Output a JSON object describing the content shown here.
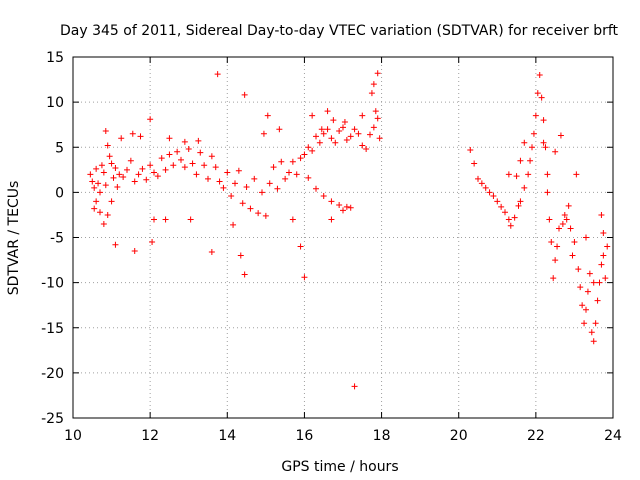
{
  "chart_data": {
    "type": "scatter",
    "title": "Day 345 of 2011, Sidereal Day-to-day VTEC variation (SDTVAR) for receiver brft",
    "xlabel": "GPS time / hours",
    "ylabel": "SDTVAR / TECUs",
    "xlim": [
      10,
      24
    ],
    "ylim": [
      -25,
      15
    ],
    "xticks": [
      10,
      12,
      14,
      16,
      18,
      20,
      22,
      24
    ],
    "yticks": [
      -25,
      -20,
      -15,
      -10,
      -5,
      0,
      5,
      10,
      15
    ],
    "grid": true,
    "marker": "+",
    "color": "#ff0000",
    "series": [
      {
        "name": "SDTVAR",
        "points": [
          [
            10.45,
            2.0
          ],
          [
            10.5,
            1.2
          ],
          [
            10.55,
            0.5
          ],
          [
            10.6,
            2.6
          ],
          [
            10.65,
            1.0
          ],
          [
            10.7,
            0.0
          ],
          [
            10.75,
            3.0
          ],
          [
            10.8,
            2.2
          ],
          [
            10.85,
            0.8
          ],
          [
            10.9,
            5.2
          ],
          [
            10.95,
            4.0
          ],
          [
            11.0,
            3.2
          ],
          [
            11.05,
            1.6
          ],
          [
            11.1,
            2.7
          ],
          [
            11.15,
            0.6
          ],
          [
            11.2,
            2.0
          ],
          [
            11.3,
            1.7
          ],
          [
            11.4,
            2.5
          ],
          [
            11.5,
            3.5
          ],
          [
            11.6,
            1.2
          ],
          [
            11.7,
            2.0
          ],
          [
            11.8,
            2.6
          ],
          [
            11.9,
            1.4
          ],
          [
            12.0,
            3.0
          ],
          [
            12.1,
            2.2
          ],
          [
            12.2,
            1.8
          ],
          [
            12.3,
            3.8
          ],
          [
            12.4,
            2.5
          ],
          [
            12.5,
            4.2
          ],
          [
            12.6,
            3.0
          ],
          [
            12.7,
            4.5
          ],
          [
            12.8,
            3.6
          ],
          [
            12.9,
            2.8
          ],
          [
            13.0,
            4.8
          ],
          [
            13.1,
            3.2
          ],
          [
            13.2,
            2.0
          ],
          [
            13.3,
            4.4
          ],
          [
            13.4,
            3.0
          ],
          [
            13.5,
            1.5
          ],
          [
            13.6,
            4.0
          ],
          [
            13.7,
            2.8
          ],
          [
            13.8,
            1.2
          ],
          [
            13.9,
            0.5
          ],
          [
            14.0,
            2.2
          ],
          [
            14.1,
            -0.4
          ],
          [
            14.2,
            1.0
          ],
          [
            14.3,
            2.4
          ],
          [
            14.4,
            -1.2
          ],
          [
            14.5,
            0.6
          ],
          [
            14.6,
            -1.8
          ],
          [
            14.7,
            1.5
          ],
          [
            14.8,
            -2.3
          ],
          [
            14.9,
            0.0
          ],
          [
            15.0,
            -2.6
          ],
          [
            15.1,
            1.0
          ],
          [
            15.2,
            2.8
          ],
          [
            15.3,
            0.4
          ],
          [
            15.4,
            3.4
          ],
          [
            15.5,
            1.5
          ],
          [
            15.6,
            2.2
          ],
          [
            15.7,
            3.4
          ],
          [
            15.8,
            2.0
          ],
          [
            15.9,
            3.8
          ],
          [
            16.0,
            4.2
          ],
          [
            16.1,
            5.0
          ],
          [
            16.2,
            4.6
          ],
          [
            16.3,
            6.2
          ],
          [
            16.4,
            5.5
          ],
          [
            16.5,
            6.5
          ],
          [
            16.6,
            7.0
          ],
          [
            16.7,
            6.0
          ],
          [
            16.8,
            5.5
          ],
          [
            16.9,
            6.8
          ],
          [
            17.0,
            7.2
          ],
          [
            17.1,
            5.8
          ],
          [
            17.2,
            6.2
          ],
          [
            17.3,
            7.0
          ],
          [
            17.4,
            6.5
          ],
          [
            17.5,
            5.2
          ],
          [
            17.6,
            4.8
          ],
          [
            17.7,
            6.4
          ],
          [
            17.8,
            7.2
          ],
          [
            17.9,
            8.2
          ],
          [
            16.1,
            1.6
          ],
          [
            16.3,
            0.4
          ],
          [
            16.5,
            -0.4
          ],
          [
            16.7,
            -1.0
          ],
          [
            16.9,
            -1.4
          ],
          [
            17.1,
            -1.6
          ],
          [
            17.2,
            -1.7
          ],
          [
            10.55,
            -1.8
          ],
          [
            10.6,
            -1.0
          ],
          [
            10.7,
            -2.2
          ],
          [
            10.8,
            -3.5
          ],
          [
            10.9,
            -2.5
          ],
          [
            11.0,
            -1.0
          ],
          [
            11.1,
            -5.8
          ],
          [
            11.6,
            -6.5
          ],
          [
            12.05,
            -5.5
          ],
          [
            12.1,
            -3.0
          ],
          [
            12.4,
            -3.0
          ],
          [
            13.05,
            -3.0
          ],
          [
            13.6,
            -6.6
          ],
          [
            14.15,
            -3.6
          ],
          [
            14.35,
            -7.0
          ],
          [
            14.45,
            -9.1
          ],
          [
            15.7,
            -3.0
          ],
          [
            15.9,
            -6.0
          ],
          [
            16.0,
            -9.4
          ],
          [
            16.7,
            -3.0
          ],
          [
            17.0,
            -2.0
          ],
          [
            17.3,
            -21.5
          ],
          [
            10.85,
            6.8
          ],
          [
            11.25,
            6.0
          ],
          [
            11.55,
            6.5
          ],
          [
            11.75,
            6.2
          ],
          [
            12.0,
            8.1
          ],
          [
            12.5,
            6.0
          ],
          [
            12.9,
            5.6
          ],
          [
            13.25,
            5.7
          ],
          [
            13.75,
            13.1
          ],
          [
            14.45,
            10.8
          ],
          [
            14.95,
            6.5
          ],
          [
            15.05,
            8.5
          ],
          [
            15.35,
            7.0
          ],
          [
            16.2,
            8.5
          ],
          [
            16.45,
            7.0
          ],
          [
            16.6,
            9.0
          ],
          [
            16.75,
            8.0
          ],
          [
            17.05,
            7.8
          ],
          [
            17.5,
            8.5
          ],
          [
            17.75,
            11.0
          ],
          [
            17.8,
            12.0
          ],
          [
            17.85,
            9.0
          ],
          [
            17.9,
            13.2
          ],
          [
            17.95,
            6.0
          ],
          [
            20.3,
            4.7
          ],
          [
            20.4,
            3.2
          ],
          [
            20.5,
            1.5
          ],
          [
            20.6,
            1.0
          ],
          [
            20.7,
            0.5
          ],
          [
            20.8,
            0.0
          ],
          [
            20.9,
            -0.4
          ],
          [
            21.0,
            -1.0
          ],
          [
            21.1,
            -1.6
          ],
          [
            21.2,
            -2.2
          ],
          [
            21.3,
            -3.0
          ],
          [
            21.35,
            -3.7
          ],
          [
            21.45,
            -2.8
          ],
          [
            21.55,
            -1.5
          ],
          [
            21.6,
            -1.0
          ],
          [
            21.7,
            0.5
          ],
          [
            21.8,
            2.0
          ],
          [
            21.85,
            3.5
          ],
          [
            21.9,
            5.0
          ],
          [
            21.95,
            6.5
          ],
          [
            22.0,
            8.5
          ],
          [
            22.05,
            11.0
          ],
          [
            22.1,
            13.0
          ],
          [
            22.15,
            10.5
          ],
          [
            22.2,
            8.0
          ],
          [
            22.25,
            5.0
          ],
          [
            22.3,
            0.0
          ],
          [
            22.35,
            -3.0
          ],
          [
            22.4,
            -5.5
          ],
          [
            22.45,
            -9.5
          ],
          [
            22.5,
            -7.5
          ],
          [
            22.55,
            -6.0
          ],
          [
            22.6,
            -4.0
          ],
          [
            22.7,
            -3.5
          ],
          [
            22.8,
            -3.0
          ],
          [
            22.85,
            -1.5
          ],
          [
            22.9,
            -4.0
          ],
          [
            23.0,
            -5.5
          ],
          [
            23.1,
            -8.5
          ],
          [
            23.15,
            -10.5
          ],
          [
            23.2,
            -12.5
          ],
          [
            23.25,
            -14.5
          ],
          [
            23.3,
            -13.0
          ],
          [
            23.35,
            -11.0
          ],
          [
            23.4,
            -9.0
          ],
          [
            23.45,
            -15.5
          ],
          [
            23.5,
            -16.5
          ],
          [
            23.55,
            -14.5
          ],
          [
            23.6,
            -12.0
          ],
          [
            23.65,
            -10.0
          ],
          [
            23.7,
            -8.0
          ],
          [
            23.75,
            -7.0
          ],
          [
            23.8,
            -9.5
          ],
          [
            23.85,
            -6.0
          ],
          [
            21.3,
            2.0
          ],
          [
            21.5,
            1.8
          ],
          [
            21.6,
            3.5
          ],
          [
            21.7,
            5.5
          ],
          [
            22.2,
            5.5
          ],
          [
            22.3,
            2.0
          ],
          [
            22.5,
            4.5
          ],
          [
            22.65,
            6.3
          ],
          [
            22.75,
            -2.5
          ],
          [
            22.95,
            -7.0
          ],
          [
            23.05,
            2.0
          ],
          [
            23.3,
            -5.0
          ],
          [
            23.5,
            -10.0
          ],
          [
            23.7,
            -2.5
          ],
          [
            23.75,
            -4.5
          ]
        ]
      }
    ]
  }
}
